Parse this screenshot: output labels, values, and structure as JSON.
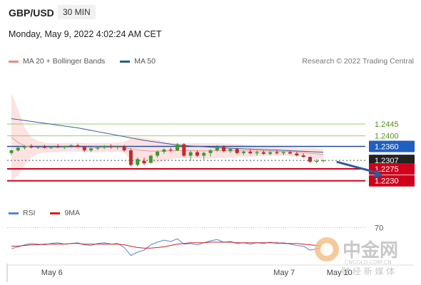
{
  "header": {
    "symbol": "GBP/USD",
    "timeframe": "30 MIN",
    "datetime": "Monday, May 9, 2022 4:02:24 AM CET"
  },
  "legend": {
    "ma20_label": "MA 20 + Bollinger Bands",
    "ma20_color": "#e88b8b",
    "ma50_label": "MA 50",
    "ma50_color": "#2c5a8a"
  },
  "credit": "Research © 2022 Trading Central",
  "rsi_legend": {
    "rsi_label": "RSI",
    "rsi_color": "#5b82d8",
    "ma_label": "9MA",
    "ma_color": "#d22020"
  },
  "watermark": {
    "brand": "中金网",
    "domain": "CNGOLD.COM.CN",
    "slogan": "财 经 新 媒 体"
  },
  "chart_data": {
    "type": "candlestick",
    "ylim": [
      1.217,
      1.2655
    ],
    "levels": [
      {
        "value": 1.2445,
        "label": "1.2445",
        "style": "green"
      },
      {
        "value": 1.24,
        "label": "1.2400",
        "style": "green"
      },
      {
        "value": 1.236,
        "label": "1.2360",
        "style": "blue"
      },
      {
        "value": 1.2307,
        "label": "1.2307",
        "style": "price"
      },
      {
        "value": 1.2275,
        "label": "1.2275",
        "style": "red"
      },
      {
        "value": 1.223,
        "label": "1.2230",
        "style": "red"
      }
    ],
    "x_labels": [
      {
        "label": "May 6",
        "index": 6
      },
      {
        "label": "May 7",
        "index": 41
      },
      {
        "label": "May 10",
        "index": 49
      }
    ],
    "candles": [
      [
        1.2335,
        1.2348,
        1.2328,
        1.2345
      ],
      [
        1.2345,
        1.236,
        1.234,
        1.2355
      ],
      [
        1.2355,
        1.2365,
        1.2348,
        1.236
      ],
      [
        1.236,
        1.2368,
        1.2352,
        1.2356
      ],
      [
        1.2356,
        1.2362,
        1.235,
        1.2358
      ],
      [
        1.2358,
        1.2366,
        1.2352,
        1.2355
      ],
      [
        1.2355,
        1.2362,
        1.235,
        1.236
      ],
      [
        1.236,
        1.2368,
        1.2354,
        1.2357
      ],
      [
        1.2357,
        1.2363,
        1.235,
        1.2361
      ],
      [
        1.2361,
        1.2368,
        1.2355,
        1.2364
      ],
      [
        1.2364,
        1.237,
        1.2356,
        1.2358
      ],
      [
        1.2358,
        1.2362,
        1.234,
        1.2345
      ],
      [
        1.2345,
        1.2355,
        1.2338,
        1.2352
      ],
      [
        1.2352,
        1.236,
        1.2345,
        1.2356
      ],
      [
        1.2356,
        1.2365,
        1.235,
        1.2362
      ],
      [
        1.2362,
        1.2368,
        1.2352,
        1.2358
      ],
      [
        1.2358,
        1.2364,
        1.2348,
        1.236
      ],
      [
        1.236,
        1.2366,
        1.234,
        1.2345
      ],
      [
        1.2345,
        1.2352,
        1.2285,
        1.229
      ],
      [
        1.229,
        1.2318,
        1.2285,
        1.2312
      ],
      [
        1.2305,
        1.2318,
        1.229,
        1.2296
      ],
      [
        1.2298,
        1.2328,
        1.2295,
        1.2325
      ],
      [
        1.2325,
        1.2345,
        1.2318,
        1.234
      ],
      [
        1.234,
        1.2352,
        1.2332,
        1.2348
      ],
      [
        1.2348,
        1.2355,
        1.2338,
        1.2345
      ],
      [
        1.2345,
        1.2372,
        1.2342,
        1.2368
      ],
      [
        1.2368,
        1.2372,
        1.232,
        1.2325
      ],
      [
        1.2325,
        1.2345,
        1.2305,
        1.2338
      ],
      [
        1.2338,
        1.2345,
        1.232,
        1.2325
      ],
      [
        1.2325,
        1.234,
        1.231,
        1.2335
      ],
      [
        1.2335,
        1.235,
        1.2322,
        1.2345
      ],
      [
        1.2345,
        1.2365,
        1.234,
        1.2358
      ],
      [
        1.2358,
        1.2364,
        1.2338,
        1.2342
      ],
      [
        1.2342,
        1.2355,
        1.2335,
        1.235
      ],
      [
        1.235,
        1.2355,
        1.233,
        1.2335
      ],
      [
        1.2335,
        1.2345,
        1.2328,
        1.234
      ],
      [
        1.234,
        1.235,
        1.233,
        1.2334
      ],
      [
        1.2334,
        1.2345,
        1.2325,
        1.2338
      ],
      [
        1.2338,
        1.2345,
        1.2328,
        1.2332
      ],
      [
        1.2332,
        1.2342,
        1.2326,
        1.2338
      ],
      [
        1.2338,
        1.2345,
        1.233,
        1.2334
      ],
      [
        1.2334,
        1.2342,
        1.2326,
        1.2338
      ],
      [
        1.2338,
        1.2344,
        1.233,
        1.2333
      ],
      [
        1.2333,
        1.234,
        1.2322,
        1.2326
      ],
      [
        1.2326,
        1.2334,
        1.2318,
        1.232
      ],
      [
        1.232,
        1.2322,
        1.2298,
        1.2302
      ],
      [
        1.2302,
        1.2312,
        1.2296,
        1.2305
      ],
      [
        1.2305,
        1.231,
        1.23,
        1.2307
      ]
    ],
    "ma20": [
      1.2395,
      1.2375,
      1.2362,
      1.2358,
      1.2356,
      1.2355,
      1.2355,
      1.2356,
      1.2356,
      1.2357,
      1.2357,
      1.2356,
      1.2355,
      1.2355,
      1.2356,
      1.2356,
      1.2357,
      1.2356,
      1.2351,
      1.2347,
      1.2344,
      1.2342,
      1.2342,
      1.2342,
      1.2343,
      1.2344,
      1.2344,
      1.2344,
      1.2343,
      1.2343,
      1.2343,
      1.2344,
      1.2344,
      1.2344,
      1.2344,
      1.2343,
      1.2343,
      1.2342,
      1.2342,
      1.2342,
      1.2341,
      1.2341,
      1.234,
      1.2339,
      1.2337,
      1.2334,
      1.2332,
      1.233
    ],
    "bb_upper": [
      1.256,
      1.25,
      1.243,
      1.2395,
      1.238,
      1.2374,
      1.2372,
      1.2372,
      1.2372,
      1.2373,
      1.2374,
      1.2373,
      1.2372,
      1.2372,
      1.2373,
      1.2373,
      1.2374,
      1.2376,
      1.2392,
      1.2394,
      1.2392,
      1.2388,
      1.2385,
      1.238,
      1.2375,
      1.2372,
      1.2372,
      1.2372,
      1.2372,
      1.2372,
      1.2372,
      1.2372,
      1.2371,
      1.237,
      1.2368,
      1.2366,
      1.2364,
      1.2362,
      1.236,
      1.2358,
      1.2357,
      1.2356,
      1.2356,
      1.2355,
      1.2354,
      1.2354,
      1.2352,
      1.235
    ],
    "bb_lower": [
      1.223,
      1.225,
      1.229,
      1.232,
      1.2332,
      1.2336,
      1.2338,
      1.234,
      1.234,
      1.2341,
      1.234,
      1.2339,
      1.2338,
      1.2338,
      1.2339,
      1.2339,
      1.234,
      1.2336,
      1.231,
      1.23,
      1.2296,
      1.2296,
      1.2299,
      1.2304,
      1.2311,
      1.2316,
      1.2316,
      1.2316,
      1.2314,
      1.2314,
      1.2314,
      1.2316,
      1.2317,
      1.2318,
      1.232,
      1.232,
      1.2322,
      1.2322,
      1.2324,
      1.2326,
      1.2325,
      1.2326,
      1.2324,
      1.2323,
      1.232,
      1.2314,
      1.2312,
      1.231
    ],
    "ma50": [
      {
        "i": 0,
        "v": 1.2465
      },
      {
        "i": 10,
        "v": 1.243
      },
      {
        "i": 20,
        "v": 1.2383
      },
      {
        "i": 25,
        "v": 1.2365
      },
      {
        "i": 32,
        "v": 1.2354
      },
      {
        "i": 40,
        "v": 1.2346
      },
      {
        "i": 47,
        "v": 1.2338
      }
    ],
    "forecast_arrow": {
      "from_index": 49,
      "from_value": 1.2302,
      "to_index": 56,
      "to_value": 1.2248
    },
    "rsi": {
      "ylim": [
        20,
        80
      ],
      "reference_level": 70,
      "rsi_values": [
        38,
        41,
        44,
        46,
        45,
        44,
        46,
        47,
        45,
        46,
        47,
        44,
        43,
        46,
        47,
        45,
        46,
        40,
        28,
        33,
        36,
        44,
        48,
        51,
        49,
        53,
        45,
        46,
        44,
        47,
        50,
        52,
        48,
        49,
        46,
        47,
        45,
        47,
        46,
        48,
        46,
        47,
        45,
        43,
        42,
        36,
        38,
        40
      ],
      "ma_values": [
        42,
        42,
        43,
        44,
        44,
        45,
        45,
        45,
        45,
        46,
        46,
        45,
        45,
        45,
        45,
        45,
        45,
        44,
        42,
        40,
        39,
        39,
        40,
        41,
        43,
        45,
        46,
        47,
        47,
        47,
        48,
        48,
        48,
        48,
        47,
        47,
        47,
        47,
        47,
        47,
        47,
        46,
        46,
        46,
        45,
        44,
        43,
        42
      ]
    }
  }
}
